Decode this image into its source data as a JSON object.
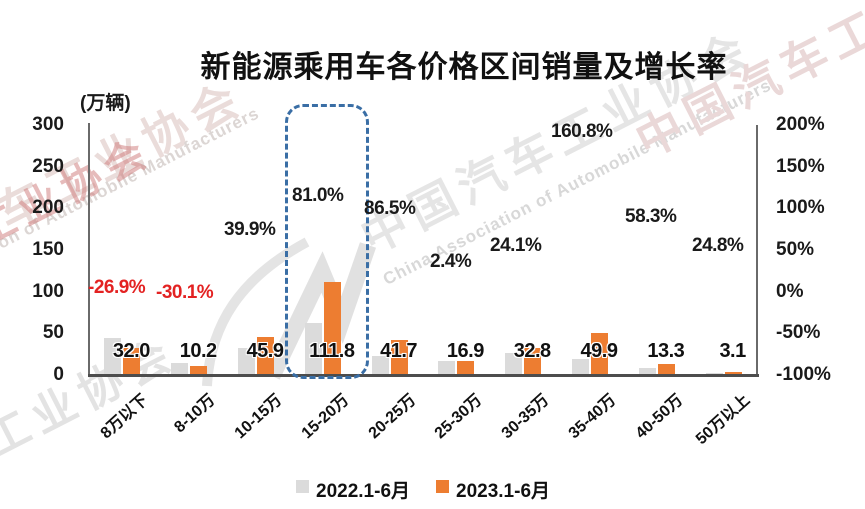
{
  "watermarks": {
    "cn_text": "中国汽车工业协会",
    "en_text": "China Association of Automobile Manufacturers",
    "left_red_text": "汽车工业协会",
    "corner_text": "工业协会"
  },
  "chart_data": {
    "type": "bar",
    "title": "新能源乘用车各价格区间销量及增长率",
    "y_left_unit_label": "(万辆)",
    "y_left_axis": {
      "ticks": [
        "300",
        "250",
        "200",
        "150",
        "100",
        "50",
        "0"
      ],
      "range": [
        0,
        300
      ]
    },
    "y_right_axis": {
      "ticks": [
        "200%",
        "150%",
        "100%",
        "50%",
        "0%",
        "-50%",
        "-100%"
      ],
      "range_percent": [
        -100,
        200
      ]
    },
    "categories": [
      "8万以下",
      "8-10万",
      "10-15万",
      "15-20万",
      "20-25万",
      "25-30万",
      "30-35万",
      "35-40万",
      "40-50万",
      "50万以上"
    ],
    "series": [
      {
        "name": "2022.1-6月",
        "color": "#DBDBDB",
        "values": [
          43.8,
          14.6,
          32.8,
          61.8,
          22.4,
          16.5,
          26.4,
          19.1,
          8.4,
          2.5
        ],
        "values_note": "bars unlabeled in chart; heights estimated from pixels / growth rates"
      },
      {
        "name": "2023.1-6月",
        "color": "#ED7D31",
        "values": [
          32.0,
          10.2,
          45.9,
          111.8,
          41.7,
          16.9,
          32.8,
          49.9,
          13.3,
          3.1
        ]
      }
    ],
    "data_labels_2023": [
      "32.0",
      "10.2",
      "45.9",
      "111.8",
      "41.7",
      "16.9",
      "32.8",
      "49.9",
      "13.3",
      "3.1"
    ],
    "growth_labels": [
      {
        "text": "-26.9%",
        "negative": true
      },
      {
        "text": "-30.1%",
        "negative": true
      },
      {
        "text": "39.9%",
        "negative": false
      },
      {
        "text": "81.0%",
        "negative": false
      },
      {
        "text": "86.5%",
        "negative": false
      },
      {
        "text": "2.4%",
        "negative": false
      },
      {
        "text": "24.1%",
        "negative": false
      },
      {
        "text": "160.8%",
        "negative": false
      },
      {
        "text": "58.3%",
        "negative": false
      },
      {
        "text": "24.8%",
        "negative": false
      }
    ],
    "growth_values_percent": [
      -26.9,
      -30.1,
      39.9,
      81.0,
      86.5,
      2.4,
      24.1,
      160.8,
      58.3,
      24.8
    ],
    "highlight_category": "15-20万",
    "legend_position": "bottom",
    "grid": "off",
    "colors": {
      "bar_2022": "#DBDBDB",
      "bar_2023": "#ED7D31",
      "growth_label": "#1A1A1A",
      "negative_growth_label": "#E32222",
      "axis": "#6A6A6A",
      "highlight_box": "#3A6EA5"
    }
  }
}
